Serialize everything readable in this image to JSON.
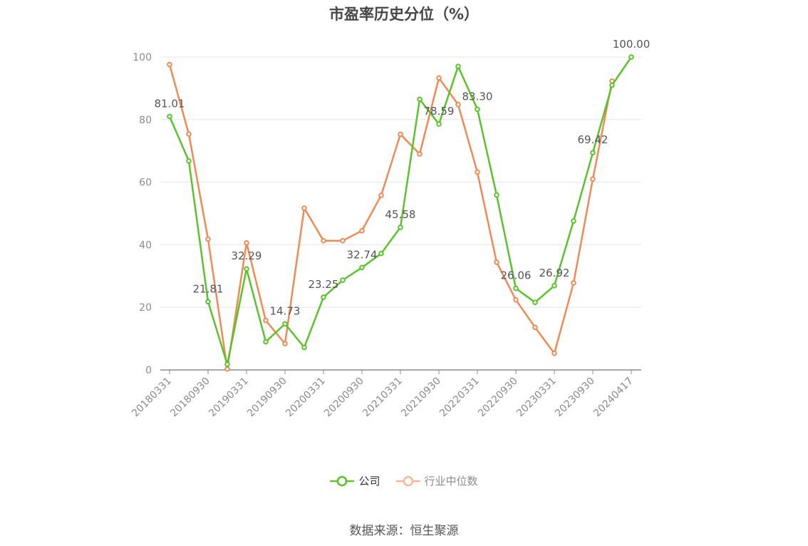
{
  "chart_data": {
    "type": "line",
    "title": "市盈率历史分位（%）",
    "x": [
      "20180331",
      "20180630",
      "20180930",
      "20181231",
      "20190331",
      "20190630",
      "20190930",
      "20191231",
      "20200331",
      "20200630",
      "20200930",
      "20201231",
      "20210331",
      "20210630",
      "20210930",
      "20211231",
      "20220331",
      "20220630",
      "20220930",
      "20221231",
      "20230331",
      "20230630",
      "20230930",
      "20231231",
      "20240417"
    ],
    "x_tick_labels": [
      "20180331",
      "20180930",
      "20190331",
      "20190930",
      "20200331",
      "20200930",
      "20210331",
      "20210930",
      "20220331",
      "20220930",
      "20230331",
      "20230930",
      "20240417"
    ],
    "series": [
      {
        "name": "公司",
        "color": "#5ac22b",
        "values": [
          81.01,
          66.8,
          21.81,
          1.8,
          32.29,
          9.0,
          14.73,
          7.2,
          23.25,
          28.7,
          32.74,
          37.2,
          45.58,
          86.5,
          78.59,
          97.0,
          83.3,
          55.9,
          26.06,
          21.6,
          26.92,
          47.6,
          69.42,
          91.0,
          100.0
        ],
        "labels": [
          "81.01",
          null,
          "21.81",
          null,
          "32.29",
          null,
          "14.73",
          null,
          "23.25",
          null,
          "32.74",
          null,
          "45.58",
          null,
          "78.59",
          null,
          "83.30",
          null,
          "26.06",
          null,
          "26.92",
          null,
          "69.42",
          null,
          "100.00"
        ]
      },
      {
        "name": "行业中位数",
        "color": "#f08a55",
        "values": [
          97.6,
          75.4,
          41.8,
          0.3,
          40.6,
          15.8,
          8.4,
          51.7,
          41.3,
          41.3,
          44.5,
          55.8,
          75.3,
          69.0,
          93.3,
          84.8,
          63.2,
          34.4,
          22.4,
          13.6,
          5.3,
          27.8,
          61.0,
          92.3,
          null
        ]
      }
    ],
    "ylim": [
      0,
      100
    ],
    "yticks": [
      0,
      20,
      40,
      60,
      80,
      100
    ],
    "grid": true,
    "legend_position": "bottom"
  },
  "legend": [
    {
      "label": "公司",
      "color": "#5ac22b"
    },
    {
      "label": "行业中位数",
      "color": "#f5b99a"
    }
  ],
  "source": "数据来源：恒生聚源"
}
